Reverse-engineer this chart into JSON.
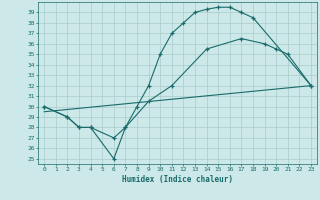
{
  "xlabel": "Humidex (Indice chaleur)",
  "bg_color": "#cce8e8",
  "grid_color": "#aacccc",
  "line_color": "#1a6b6b",
  "xlim": [
    -0.5,
    23.5
  ],
  "ylim": [
    24.5,
    40.0
  ],
  "xticks": [
    0,
    1,
    2,
    3,
    4,
    5,
    6,
    7,
    8,
    9,
    10,
    11,
    12,
    13,
    14,
    15,
    16,
    17,
    18,
    19,
    20,
    21,
    22,
    23
  ],
  "yticks": [
    25,
    26,
    27,
    28,
    29,
    30,
    31,
    32,
    33,
    34,
    35,
    36,
    37,
    38,
    39
  ],
  "line1_x": [
    0,
    2,
    3,
    4,
    6,
    7,
    8,
    9,
    10,
    11,
    12,
    13,
    14,
    15,
    16,
    17,
    18,
    23
  ],
  "line1_y": [
    30,
    29,
    28,
    28,
    25,
    28,
    30,
    32,
    35,
    37,
    38,
    39,
    39.3,
    39.5,
    39.5,
    39,
    38.5,
    32
  ],
  "line2_x": [
    0,
    2,
    3,
    4,
    6,
    7,
    9,
    11,
    14,
    17,
    19,
    20,
    21,
    23
  ],
  "line2_y": [
    30,
    29,
    28,
    28,
    27,
    28,
    30.5,
    32,
    35.5,
    36.5,
    36,
    35.5,
    35,
    32
  ],
  "line3_x": [
    0,
    23
  ],
  "line3_y": [
    29.5,
    32
  ]
}
